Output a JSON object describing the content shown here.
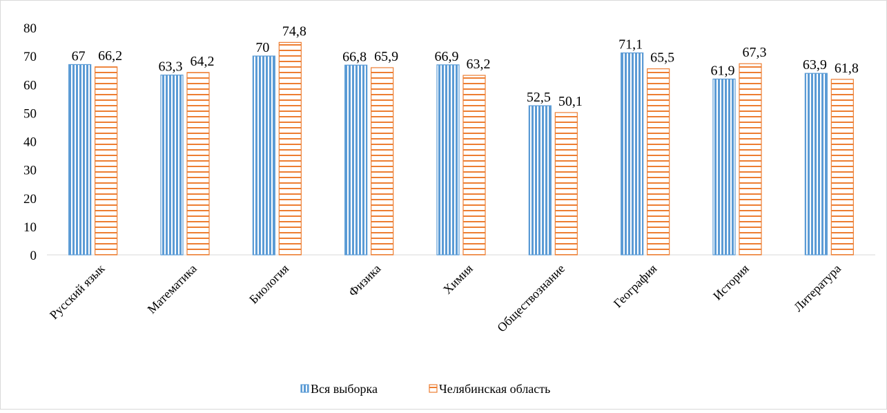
{
  "chart_data": {
    "type": "bar",
    "categories": [
      "Русский язык",
      "Математика",
      "Биология",
      "Физика",
      "Химия",
      "Обществознание",
      "География",
      "История",
      "Литература"
    ],
    "series": [
      {
        "name": "Вся выборка",
        "values": [
          67,
          63.3,
          70,
          66.8,
          66.9,
          52.5,
          71.1,
          61.9,
          63.9
        ],
        "labels": [
          "67",
          "63,3",
          "70",
          "66,8",
          "66,9",
          "52,5",
          "71,1",
          "61,9",
          "63,9"
        ],
        "color": "#5b9bd5",
        "pattern": "vertical-stripes"
      },
      {
        "name": "Челябинская область",
        "values": [
          66.2,
          64.2,
          74.8,
          65.9,
          63.2,
          50.1,
          65.5,
          67.3,
          61.8
        ],
        "labels": [
          "66,2",
          "64,2",
          "74,8",
          "65,9",
          "63,2",
          "50,1",
          "65,5",
          "67,3",
          "61,8"
        ],
        "color": "#ed7d31",
        "pattern": "horizontal-stripes"
      }
    ],
    "yticks": [
      "0",
      "10",
      "20",
      "30",
      "40",
      "50",
      "60",
      "70",
      "80"
    ],
    "ylim": [
      0,
      80
    ],
    "grid": false,
    "legend_position": "bottom"
  }
}
